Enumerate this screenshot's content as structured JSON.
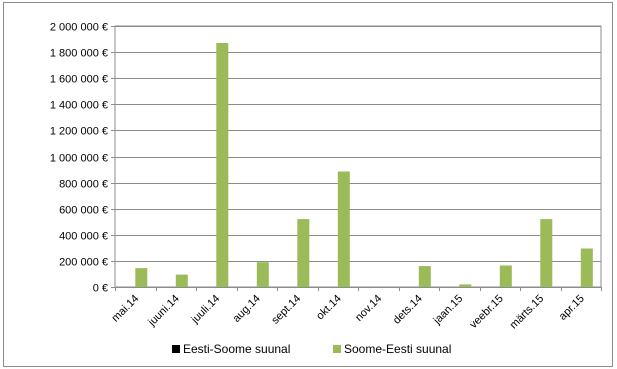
{
  "chart_data": {
    "type": "bar",
    "categories": [
      "mai.14",
      "juuni.14",
      "juuli.14",
      "aug.14",
      "sept.14",
      "okt.14",
      "nov.14",
      "dets.14",
      "jaan.15",
      "veebr.15",
      "märts.15",
      "apr.15"
    ],
    "series": [
      {
        "name": "Eesti-Soome suunal",
        "color": "#000000",
        "values": [
          0,
          0,
          0,
          0,
          0,
          0,
          0,
          0,
          0,
          0,
          0,
          0
        ]
      },
      {
        "name": "Soome-Eesti suunal",
        "color": "#9bbb59",
        "values": [
          145000,
          95000,
          1870000,
          190000,
          520000,
          885000,
          0,
          160000,
          20000,
          165000,
          520000,
          295000
        ]
      }
    ],
    "y_ticks": [
      {
        "value": 0,
        "label": "0 €"
      },
      {
        "value": 200000,
        "label": "200 000 €"
      },
      {
        "value": 400000,
        "label": "400 000 €"
      },
      {
        "value": 600000,
        "label": "600 000 €"
      },
      {
        "value": 800000,
        "label": "800 000 €"
      },
      {
        "value": 1000000,
        "label": "1 000 000 €"
      },
      {
        "value": 1200000,
        "label": "1 200 000 €"
      },
      {
        "value": 1400000,
        "label": "1 400 000 €"
      },
      {
        "value": 1600000,
        "label": "1 600 000 €"
      },
      {
        "value": 1800000,
        "label": "1 800 000 €"
      },
      {
        "value": 2000000,
        "label": "2 000 000 €"
      }
    ],
    "ylim": [
      0,
      2000000
    ],
    "grid": true,
    "legend_position": "bottom",
    "title": "",
    "xlabel": "",
    "ylabel": ""
  }
}
